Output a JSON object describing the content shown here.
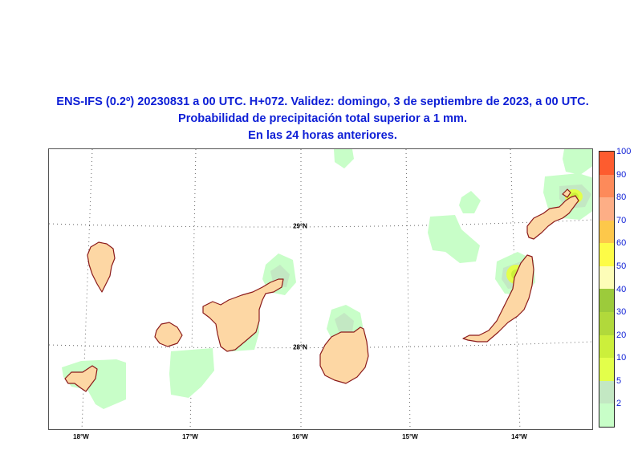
{
  "title": {
    "line1": "ENS-IFS (0.2º) 20230831 a 00 UTC. H+072. Validez: domingo, 3 de septiembre de 2023, a 00 UTC.",
    "line2": "Probabilidad de precipitación total superior a 1 mm.",
    "line3": "En las 24 horas anteriores."
  },
  "map": {
    "lon_labels": [
      "18°W",
      "17°W",
      "16°W",
      "15°W",
      "14°W"
    ],
    "lat_labels": [
      "29°N",
      "28°N"
    ],
    "land_color": "#fdd7a4",
    "coast_color": "#8b1a1a"
  },
  "colorbar": {
    "labels": [
      "100",
      "90",
      "80",
      "70",
      "60",
      "50",
      "40",
      "30",
      "20",
      "10",
      "5",
      "2"
    ],
    "colors_top_to_bottom": [
      "#fd5c2f",
      "#fd8a5a",
      "#fdae86",
      "#fdc84a",
      "#fdfc47",
      "#fdfdb8",
      "#9ccb3b",
      "#b1d93b",
      "#ccef3b",
      "#e3ff4a",
      "#c3e8c3",
      "#c8fec8"
    ]
  }
}
